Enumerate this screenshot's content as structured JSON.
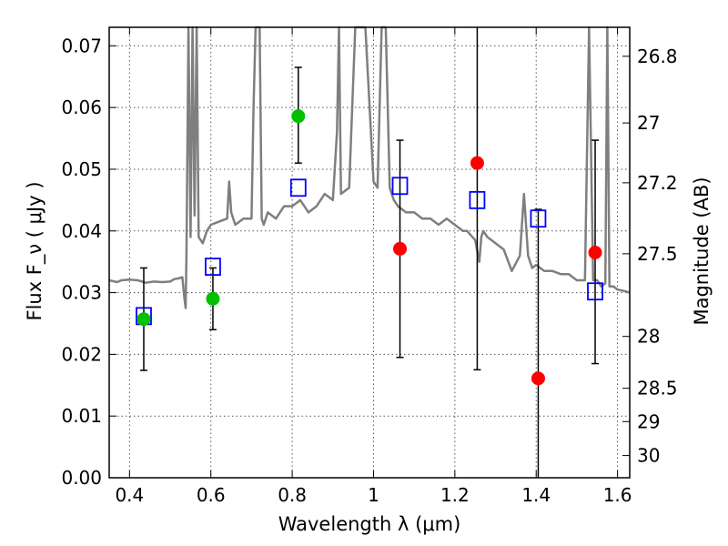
{
  "chart_data": {
    "type": "scatter",
    "xlabel": "Wavelength  λ (μm)",
    "ylabel": "Flux  F_ν  ( μJy )",
    "y2label": "Magnitude (AB)",
    "xlim": [
      0.35,
      1.63
    ],
    "ylim": [
      0.0,
      0.073
    ],
    "grid": true,
    "x_ticks": [
      0.4,
      0.6,
      0.8,
      1.0,
      1.2,
      1.4,
      1.6
    ],
    "x_tick_labels": [
      "0.4",
      "0.6",
      "0.8",
      "1",
      "1.2",
      "1.4",
      "1.6"
    ],
    "y_ticks": [
      0.0,
      0.01,
      0.02,
      0.03,
      0.04,
      0.05,
      0.06,
      0.07
    ],
    "y_tick_labels": [
      "0.00",
      "0.01",
      "0.02",
      "0.03",
      "0.04",
      "0.05",
      "0.06",
      "0.07"
    ],
    "y2_ticks": [
      {
        "label": "26.8",
        "flux": 0.0683
      },
      {
        "label": "27",
        "flux": 0.0575
      },
      {
        "label": "27.2",
        "flux": 0.0478
      },
      {
        "label": "27.5",
        "flux": 0.0363
      },
      {
        "label": "28",
        "flux": 0.0229
      },
      {
        "label": "28.5",
        "flux": 0.0145
      },
      {
        "label": "29",
        "flux": 0.0091
      },
      {
        "label": "30",
        "flux": 0.0036
      }
    ],
    "colors": {
      "model": "#7f7f7f",
      "detection": "#00c000",
      "red_points": "#ff0000",
      "model_photometry": "#0000ff",
      "errorbar": "#000000",
      "grid": "#555555"
    },
    "series": [
      {
        "kind": "model_spectrum",
        "x": [
          0.35,
          0.37,
          0.38,
          0.4,
          0.42,
          0.44,
          0.46,
          0.48,
          0.5,
          0.51,
          0.52,
          0.53,
          0.535,
          0.538,
          0.54,
          0.545,
          0.55,
          0.555,
          0.56,
          0.565,
          0.57,
          0.58,
          0.59,
          0.6,
          0.62,
          0.64,
          0.645,
          0.65,
          0.655,
          0.66,
          0.68,
          0.7,
          0.705,
          0.71,
          0.72,
          0.725,
          0.73,
          0.74,
          0.76,
          0.78,
          0.8,
          0.82,
          0.84,
          0.86,
          0.88,
          0.9,
          0.91,
          0.915,
          0.92,
          0.94,
          0.955,
          0.96,
          0.965,
          0.97,
          0.98,
          1.0,
          1.01,
          1.02,
          1.03,
          1.04,
          1.05,
          1.06,
          1.08,
          1.1,
          1.12,
          1.14,
          1.16,
          1.18,
          1.2,
          1.22,
          1.23,
          1.25,
          1.26,
          1.265,
          1.27,
          1.28,
          1.3,
          1.32,
          1.34,
          1.36,
          1.37,
          1.38,
          1.39,
          1.4,
          1.41,
          1.42,
          1.44,
          1.46,
          1.48,
          1.5,
          1.51,
          1.52,
          1.53,
          1.54,
          1.55,
          1.56,
          1.57,
          1.575,
          1.58,
          1.59,
          1.6,
          1.62,
          1.63
        ],
        "y": [
          0.032,
          0.0317,
          0.032,
          0.0321,
          0.032,
          0.0316,
          0.0318,
          0.0317,
          0.0318,
          0.0322,
          0.0323,
          0.0325,
          0.029,
          0.0275,
          0.036,
          0.073,
          0.039,
          0.073,
          0.0425,
          0.073,
          0.039,
          0.038,
          0.04,
          0.041,
          0.0415,
          0.042,
          0.048,
          0.043,
          0.042,
          0.041,
          0.042,
          0.042,
          0.06,
          0.073,
          0.073,
          0.042,
          0.041,
          0.043,
          0.042,
          0.044,
          0.044,
          0.045,
          0.043,
          0.044,
          0.046,
          0.045,
          0.056,
          0.073,
          0.046,
          0.047,
          0.073,
          0.073,
          0.073,
          0.073,
          0.073,
          0.048,
          0.047,
          0.073,
          0.073,
          0.047,
          0.045,
          0.044,
          0.043,
          0.043,
          0.042,
          0.042,
          0.041,
          0.042,
          0.041,
          0.04,
          0.04,
          0.0385,
          0.035,
          0.039,
          0.04,
          0.039,
          0.038,
          0.037,
          0.0335,
          0.036,
          0.046,
          0.036,
          0.034,
          0.0345,
          0.034,
          0.0335,
          0.0335,
          0.033,
          0.033,
          0.032,
          0.032,
          0.032,
          0.073,
          0.032,
          0.032,
          0.031,
          0.0315,
          0.073,
          0.031,
          0.031,
          0.0305,
          0.0302,
          0.03
        ]
      },
      {
        "kind": "detections",
        "x": [
          0.435,
          0.605,
          0.815
        ],
        "y": [
          0.0257,
          0.029,
          0.0586
        ],
        "yerr_low": [
          0.0174,
          0.024,
          0.051
        ],
        "yerr_high": [
          0.034,
          0.034,
          0.0665
        ]
      },
      {
        "kind": "red_points",
        "x": [
          1.065,
          1.255,
          1.405,
          1.545
        ],
        "y": [
          0.0371,
          0.051,
          0.0161,
          0.0365
        ],
        "yerr_low": [
          0.0195,
          0.0175,
          0.0,
          0.0185
        ],
        "yerr_high": [
          0.0547,
          0.073,
          0.0435,
          0.0547
        ]
      },
      {
        "kind": "model_photometry",
        "x": [
          0.435,
          0.605,
          0.815,
          1.065,
          1.255,
          1.405,
          1.545
        ],
        "y": [
          0.0262,
          0.0342,
          0.047,
          0.0473,
          0.045,
          0.042,
          0.0302
        ]
      }
    ]
  }
}
